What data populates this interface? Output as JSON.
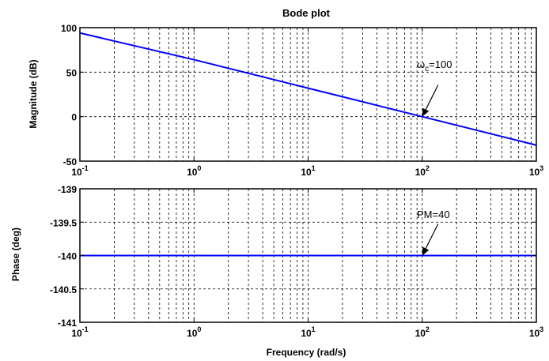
{
  "chart_data": [
    {
      "type": "line",
      "title": "Bode plot",
      "xlabel": "",
      "ylabel": "Magnitude (dB)",
      "xscale": "log",
      "xlim": [
        0.1,
        1000
      ],
      "ylim": [
        -50,
        100
      ],
      "x_ticks": [
        {
          "base": "10",
          "exp": "-1"
        },
        {
          "base": "10",
          "exp": "0"
        },
        {
          "base": "10",
          "exp": "1"
        },
        {
          "base": "10",
          "exp": "2"
        },
        {
          "base": "10",
          "exp": "3"
        }
      ],
      "y_ticks": [
        "100",
        "50",
        "0",
        "-50"
      ],
      "y_tick_values": [
        100,
        50,
        0,
        -50
      ],
      "grid": true,
      "series": [
        {
          "x": [
            0.1,
            1,
            10,
            100,
            1000
          ],
          "y": [
            94,
            64,
            32,
            0,
            -32
          ],
          "color": "#0000ff"
        }
      ],
      "annotations": [
        {
          "label": "ω",
          "subscript": "c",
          "suffix": "=100",
          "x": 100,
          "y": 0
        }
      ]
    },
    {
      "type": "line",
      "title": "",
      "xlabel": "Frequency (rad/s)",
      "ylabel": "Phase (deg)",
      "xscale": "log",
      "xlim": [
        0.1,
        1000
      ],
      "ylim": [
        -141,
        -139
      ],
      "x_ticks": [
        {
          "base": "10",
          "exp": "-1"
        },
        {
          "base": "10",
          "exp": "0"
        },
        {
          "base": "10",
          "exp": "1"
        },
        {
          "base": "10",
          "exp": "2"
        },
        {
          "base": "10",
          "exp": "3"
        }
      ],
      "y_ticks": [
        "-139",
        "-139.5",
        "-140",
        "-140.5",
        "-141"
      ],
      "y_tick_values": [
        -139,
        -139.5,
        -140,
        -140.5,
        -141
      ],
      "grid": true,
      "series": [
        {
          "x": [
            0.1,
            1000
          ],
          "y": [
            -140,
            -140
          ],
          "color": "#0000ff"
        }
      ],
      "annotations": [
        {
          "label": "PM=40",
          "x": 100,
          "y": -140
        }
      ]
    }
  ]
}
